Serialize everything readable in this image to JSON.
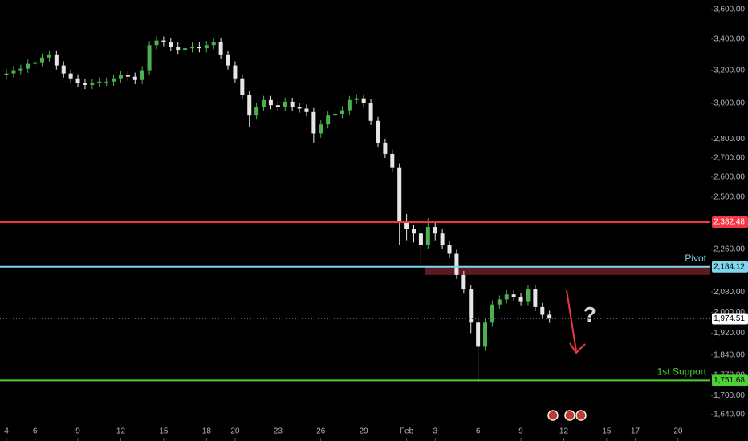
{
  "chart_data": {
    "type": "candlestick",
    "log_scale": true,
    "ylim": [
      1557,
      3668
    ],
    "yticks": [
      {
        "value": 3600,
        "label": "3,600.00"
      },
      {
        "value": 3400,
        "label": "3,400.00"
      },
      {
        "value": 3200,
        "label": "3,200.00"
      },
      {
        "value": 3000,
        "label": "3,000.00"
      },
      {
        "value": 2800,
        "label": "2,800.00"
      },
      {
        "value": 2700,
        "label": "2,700.00"
      },
      {
        "value": 2600,
        "label": "2,600.00"
      },
      {
        "value": 2500,
        "label": "2,500.00"
      },
      {
        "value": 2260,
        "label": "2,260.00"
      },
      {
        "value": 2080,
        "label": "2,080.00"
      },
      {
        "value": 2000,
        "label": "2,000.00"
      },
      {
        "value": 1920,
        "label": "1,920.00"
      },
      {
        "value": 1840,
        "label": "1,840.00"
      },
      {
        "value": 1770,
        "label": "1,770.00"
      },
      {
        "value": 1700,
        "label": "1,700.00"
      },
      {
        "value": 1640,
        "label": "1,640.00"
      }
    ],
    "xlim": [
      -0.9,
      98.5
    ],
    "xticks": [
      {
        "value": 0,
        "label": "4"
      },
      {
        "value": 4,
        "label": "6"
      },
      {
        "value": 10,
        "label": "9"
      },
      {
        "value": 16,
        "label": "12"
      },
      {
        "value": 22,
        "label": "15"
      },
      {
        "value": 28,
        "label": "18"
      },
      {
        "value": 32,
        "label": "20"
      },
      {
        "value": 38,
        "label": "23"
      },
      {
        "value": 44,
        "label": "26"
      },
      {
        "value": 50,
        "label": "29"
      },
      {
        "value": 56,
        "label": "Feb"
      },
      {
        "value": 60,
        "label": "3"
      },
      {
        "value": 66,
        "label": "6"
      },
      {
        "value": 72,
        "label": "9"
      },
      {
        "value": 78,
        "label": "12"
      },
      {
        "value": 84,
        "label": "15"
      },
      {
        "value": 88,
        "label": "17"
      },
      {
        "value": 94,
        "label": "20"
      }
    ],
    "up_color": "#4caf50",
    "down_color": "#e6e6e6",
    "candles": [
      [
        3170,
        3205,
        3145,
        3180
      ],
      [
        3180,
        3226,
        3155,
        3200
      ],
      [
        3200,
        3236,
        3174,
        3210
      ],
      [
        3210,
        3266,
        3184,
        3240
      ],
      [
        3240,
        3276,
        3214,
        3250
      ],
      [
        3250,
        3306,
        3224,
        3280
      ],
      [
        3280,
        3326,
        3254,
        3300
      ],
      [
        3300,
        3326,
        3204,
        3230
      ],
      [
        3230,
        3256,
        3155,
        3180
      ],
      [
        3180,
        3205,
        3125,
        3150
      ],
      [
        3150,
        3175,
        3095,
        3120
      ],
      [
        3120,
        3145,
        3085,
        3110
      ],
      [
        3110,
        3145,
        3085,
        3120
      ],
      [
        3120,
        3155,
        3095,
        3130
      ],
      [
        3130,
        3155,
        3105,
        3130
      ],
      [
        3130,
        3175,
        3105,
        3150
      ],
      [
        3150,
        3195,
        3125,
        3170
      ],
      [
        3170,
        3195,
        3135,
        3160
      ],
      [
        3160,
        3185,
        3115,
        3140
      ],
      [
        3140,
        3226,
        3115,
        3200
      ],
      [
        3200,
        3387,
        3174,
        3360
      ],
      [
        3360,
        3417,
        3333,
        3390
      ],
      [
        3390,
        3417,
        3353,
        3380
      ],
      [
        3380,
        3407,
        3323,
        3350
      ],
      [
        3350,
        3377,
        3303,
        3330
      ],
      [
        3330,
        3367,
        3303,
        3340
      ],
      [
        3340,
        3377,
        3313,
        3350
      ],
      [
        3350,
        3377,
        3313,
        3340
      ],
      [
        3340,
        3387,
        3313,
        3360
      ],
      [
        3360,
        3407,
        3333,
        3380
      ],
      [
        3380,
        3407,
        3274,
        3300
      ],
      [
        3300,
        3326,
        3204,
        3230
      ],
      [
        3230,
        3256,
        3125,
        3150
      ],
      [
        3150,
        3175,
        3026,
        3050
      ],
      [
        3050,
        3074,
        2867,
        2930
      ],
      [
        2930,
        3004,
        2907,
        2980
      ],
      [
        2980,
        3044,
        2956,
        3020
      ],
      [
        3020,
        3044,
        2966,
        2990
      ],
      [
        2990,
        3014,
        2956,
        2980
      ],
      [
        2980,
        3034,
        2956,
        3010
      ],
      [
        3010,
        3034,
        2956,
        2980
      ],
      [
        2980,
        3004,
        2946,
        2970
      ],
      [
        2970,
        2994,
        2926,
        2950
      ],
      [
        2950,
        2974,
        2780,
        2830
      ],
      [
        2830,
        2903,
        2807,
        2880
      ],
      [
        2880,
        2953,
        2857,
        2930
      ],
      [
        2930,
        2964,
        2907,
        2940
      ],
      [
        2940,
        2984,
        2916,
        2960
      ],
      [
        2960,
        3044,
        2936,
        3020
      ],
      [
        3020,
        3054,
        2996,
        3030
      ],
      [
        3030,
        3054,
        2976,
        3000
      ],
      [
        3000,
        3024,
        2877,
        2900
      ],
      [
        2900,
        2923,
        2758,
        2780
      ],
      [
        2780,
        2802,
        2698,
        2720
      ],
      [
        2720,
        2742,
        2629,
        2650
      ],
      [
        2650,
        2671,
        2280,
        2380
      ],
      [
        2380,
        2420,
        2300,
        2350
      ],
      [
        2350,
        2369,
        2290,
        2330
      ],
      [
        2330,
        2349,
        2200,
        2280
      ],
      [
        2280,
        2400,
        2262,
        2360
      ],
      [
        2360,
        2379,
        2300,
        2330
      ],
      [
        2330,
        2349,
        2262,
        2280
      ],
      [
        2280,
        2298,
        2222,
        2240
      ],
      [
        2240,
        2258,
        2133,
        2150
      ],
      [
        2150,
        2167,
        2073,
        2090
      ],
      [
        2090,
        2107,
        1920,
        1960
      ],
      [
        1960,
        1976,
        1745,
        1870
      ],
      [
        1870,
        1976,
        1855,
        1960
      ],
      [
        1960,
        2046,
        1944,
        2030
      ],
      [
        2030,
        2066,
        2014,
        2050
      ],
      [
        2050,
        2087,
        2034,
        2070
      ],
      [
        2070,
        2087,
        2044,
        2060
      ],
      [
        2060,
        2076,
        2024,
        2040
      ],
      [
        2040,
        2107,
        2024,
        2090
      ],
      [
        2090,
        2107,
        2004,
        2020
      ],
      [
        2020,
        2036,
        1974,
        1990
      ],
      [
        1990,
        2006,
        1959,
        1975
      ]
    ],
    "levels": [
      {
        "value": 2382.48,
        "label": "2,382.48",
        "color": "#f23645"
      },
      {
        "value": 2184.12,
        "label": "2,184.12",
        "color": "#7fd6ee",
        "name": "Pivot"
      },
      {
        "value": 1751.68,
        "label": "1,751.68",
        "color": "#4cd137",
        "name": "1st Support"
      }
    ],
    "zone": {
      "from": 2150,
      "to": 2184.12,
      "color": "#5a1a20"
    },
    "last_price": {
      "value": 1974.51,
      "label": "1,974.51"
    },
    "annotation": "?"
  }
}
